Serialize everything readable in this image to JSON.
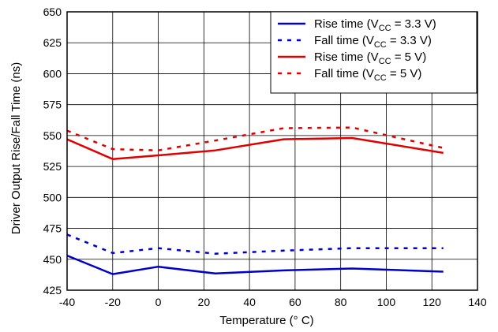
{
  "chart_data": {
    "type": "line",
    "title": "",
    "xlabel": "Temperature (° C)",
    "ylabel": "Driver Output Rise/Fall Time (ns)",
    "xlim": [
      -40,
      140
    ],
    "ylim": [
      425,
      650
    ],
    "x_ticks": [
      -40,
      -20,
      0,
      20,
      40,
      60,
      80,
      100,
      120,
      140
    ],
    "y_ticks": [
      425,
      450,
      475,
      500,
      525,
      550,
      575,
      600,
      625,
      650
    ],
    "grid": true,
    "legend_position": "top-right",
    "series": [
      {
        "name": "Rise time (VCC = 3.3 V)",
        "legend": {
          "pre": "Rise time (V",
          "sub": "CC",
          "post": " = 3.3 V)"
        },
        "color": "#0000cc",
        "style": "solid",
        "x": [
          -40,
          -20,
          0,
          25,
          55,
          85,
          125
        ],
        "values": [
          453,
          438,
          444,
          438.5,
          441,
          442.5,
          440
        ]
      },
      {
        "name": "Fall time (VCC = 3.3 V)",
        "legend": {
          "pre": "Fall time (V",
          "sub": "CC",
          "post": " = 3.3 V)"
        },
        "color": "#0000cc",
        "style": "dashed",
        "x": [
          -40,
          -20,
          0,
          25,
          55,
          85,
          125
        ],
        "values": [
          470,
          455,
          459,
          454.5,
          457,
          459,
          459
        ]
      },
      {
        "name": "Rise time (VCC = 5 V)",
        "legend": {
          "pre": "Rise time (V",
          "sub": "CC",
          "post": " = 5 V)"
        },
        "color": "#e00000",
        "style": "solid",
        "x": [
          -40,
          -20,
          0,
          25,
          55,
          85,
          125
        ],
        "values": [
          547,
          531,
          534,
          538,
          547,
          548,
          536
        ]
      },
      {
        "name": "Fall time (VCC = 5 V)",
        "legend": {
          "pre": "Fall time (V",
          "sub": "CC",
          "post": " = 5 V)"
        },
        "color": "#e00000",
        "style": "dashed",
        "x": [
          -40,
          -20,
          0,
          25,
          55,
          85,
          125
        ],
        "values": [
          554,
          539,
          538,
          546,
          556,
          556.5,
          540
        ]
      }
    ]
  }
}
